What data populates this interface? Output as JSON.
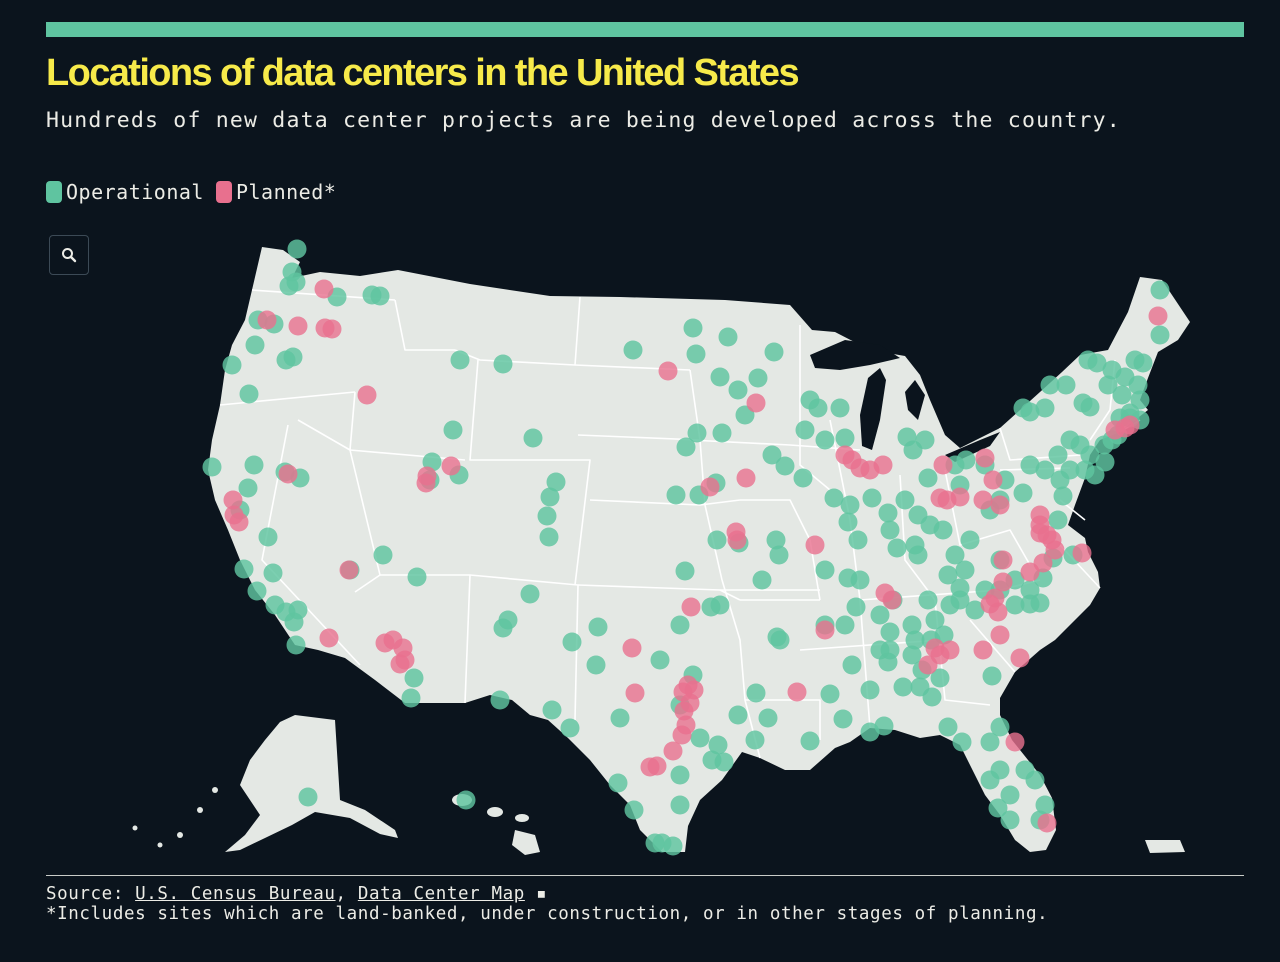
{
  "header": {
    "title": "Locations of data centers in the United States",
    "subtitle": "Hundreds of new data center projects are being developed across the country."
  },
  "legend": [
    {
      "label": "Operational",
      "color": "#5fc4a0"
    },
    {
      "label": "Planned*",
      "color": "#e8708e"
    }
  ],
  "zoom_button": {
    "icon": "search-icon"
  },
  "colors": {
    "background": "#0b141d",
    "land": "#e4e8e4",
    "borders": "#ffffff",
    "title": "#f7ea4a",
    "accent": "#5fc4a0",
    "operational": "#5fc4a0",
    "planned": "#e8708e"
  },
  "footer": {
    "source_prefix": "Source:",
    "source_1": "U.S. Census Bureau",
    "separator": ",",
    "source_2": "Data Center Map",
    "bullet": "▪",
    "note": "*Includes sites which are land-banked, under construction, or in other stages of planning."
  }
}
